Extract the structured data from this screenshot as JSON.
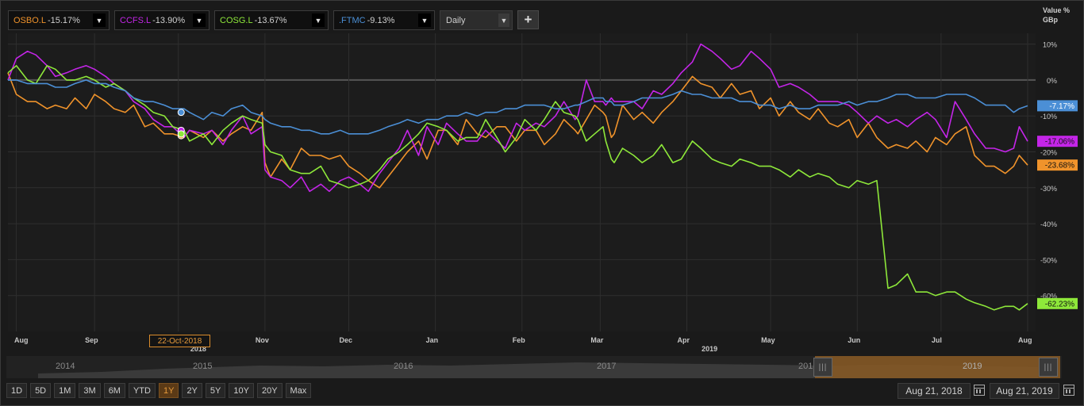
{
  "toolbar": {
    "tickers": [
      {
        "symbol": "OSBO.L",
        "change": "-15.17%",
        "color": "#f0932b"
      },
      {
        "symbol": "CCFS.L",
        "change": "-13.90%",
        "color": "#c425e8"
      },
      {
        "symbol": "COSG.L",
        "change": "-13.67%",
        "color": "#8ee83a"
      },
      {
        "symbol": ".FTMC",
        "change": "-9.13%",
        "color": "#4b8fd6"
      }
    ],
    "dropdown_glyph": "▼",
    "period_label": "Daily",
    "add_label": "+"
  },
  "axis": {
    "value_label": "Value %",
    "unit_label": "GBp"
  },
  "crosshair": {
    "date_label": "22-Oct-2018"
  },
  "navigator": {
    "years": [
      "2014",
      "2015",
      "2016",
      "2017",
      "2018",
      "2019"
    ]
  },
  "ranges": [
    "1D",
    "5D",
    "1M",
    "3M",
    "6M",
    "YTD",
    "1Y",
    "2Y",
    "5Y",
    "10Y",
    "20Y",
    "Max"
  ],
  "active_range": "1Y",
  "dates": {
    "start": "Aug 21, 2018",
    "end": "Aug 21, 2019"
  },
  "chart_data": {
    "type": "line",
    "ylim": [
      -70,
      13
    ],
    "yticks": [
      10,
      0,
      -10,
      -20,
      -30,
      -40,
      -50,
      -60
    ],
    "ytick_labels": [
      "10%",
      "0%",
      "-10%",
      "-20%",
      "-30%",
      "-40%",
      "-50%",
      "-60%"
    ],
    "xlim": [
      0,
      365
    ],
    "month_ticks": [
      {
        "label": "Aug",
        "day": 3
      },
      {
        "label": "Sep",
        "day": 31
      },
      {
        "label": "Oct",
        "day": 61
      },
      {
        "label": "Nov",
        "day": 92
      },
      {
        "label": "Dec",
        "day": 122
      },
      {
        "label": "Jan",
        "day": 153
      },
      {
        "label": "Feb",
        "day": 184
      },
      {
        "label": "Mar",
        "day": 212
      },
      {
        "label": "Apr",
        "day": 243
      },
      {
        "label": "May",
        "day": 273
      },
      {
        "label": "Jun",
        "day": 304
      },
      {
        "label": "Jul",
        "day": 334
      },
      {
        "label": "Aug",
        "day": 365
      }
    ],
    "hidden_month_labels": [
      "Oct"
    ],
    "year_labels": [
      {
        "label": "2018",
        "day": 67
      },
      {
        "label": "2019",
        "day": 250
      }
    ],
    "series": [
      {
        "name": "OSBO.L",
        "color": "#f0932b",
        "end_label": "-23.68%",
        "x": [
          0,
          3,
          7,
          10,
          14,
          17,
          21,
          24,
          28,
          31,
          35,
          38,
          42,
          45,
          49,
          52,
          56,
          59,
          63,
          65,
          70,
          73,
          77,
          80,
          84,
          87,
          91,
          92,
          94,
          98,
          101,
          105,
          108,
          112,
          115,
          119,
          122,
          126,
          129,
          133,
          136,
          140,
          143,
          147,
          150,
          154,
          157,
          161,
          164,
          168,
          171,
          175,
          178,
          182,
          185,
          189,
          192,
          196,
          199,
          203,
          204,
          207,
          210,
          213,
          214,
          216,
          217,
          220,
          224,
          227,
          231,
          234,
          238,
          241,
          245,
          248,
          252,
          255,
          259,
          262,
          266,
          269,
          273,
          276,
          280,
          283,
          287,
          290,
          294,
          297,
          301,
          304,
          308,
          311,
          315,
          318,
          322,
          325,
          329,
          332,
          336,
          339,
          343,
          346,
          350,
          353,
          357,
          360,
          362,
          365
        ],
        "values": [
          2,
          -4,
          -6,
          -6,
          -8,
          -7,
          -8,
          -5,
          -8,
          -4,
          -6,
          -8,
          -9,
          -7,
          -13,
          -12,
          -15,
          -15,
          -16,
          -14,
          -16,
          -14,
          -17,
          -15,
          -13,
          -14,
          -9,
          -23,
          -27,
          -22,
          -25,
          -19,
          -21,
          -21,
          -22,
          -21,
          -24,
          -26,
          -28,
          -30,
          -27,
          -23,
          -20,
          -17,
          -22,
          -14,
          -14,
          -18,
          -11,
          -15,
          -16,
          -13,
          -13,
          -17,
          -14,
          -14,
          -18,
          -15,
          -11,
          -14,
          -15,
          -11,
          -7,
          -9,
          -10,
          -16,
          -15,
          -7,
          -11,
          -9,
          -12,
          -9,
          -6,
          -3,
          1,
          -1,
          -2,
          -5,
          -1,
          -4,
          -3,
          -8,
          -5,
          -10,
          -6,
          -9,
          -11,
          -8,
          -12,
          -13,
          -11,
          -16,
          -12,
          -16,
          -19,
          -18,
          -19,
          -17,
          -20,
          -16,
          -18,
          -15,
          -13,
          -21,
          -24,
          -24,
          -26,
          -24,
          -21,
          -23.68
        ]
      },
      {
        "name": "CCFS.L",
        "color": "#c425e8",
        "end_label": "-17.06%",
        "x": [
          0,
          3,
          7,
          10,
          14,
          17,
          21,
          24,
          28,
          31,
          35,
          38,
          42,
          45,
          49,
          52,
          56,
          59,
          63,
          65,
          70,
          73,
          77,
          80,
          84,
          87,
          91,
          92,
          94,
          98,
          101,
          105,
          108,
          112,
          115,
          119,
          122,
          126,
          129,
          133,
          136,
          140,
          143,
          147,
          150,
          154,
          157,
          161,
          164,
          168,
          171,
          175,
          178,
          182,
          185,
          189,
          192,
          196,
          199,
          203,
          204,
          207,
          210,
          213,
          214,
          216,
          217,
          220,
          224,
          227,
          231,
          234,
          238,
          241,
          245,
          248,
          252,
          255,
          259,
          262,
          266,
          269,
          273,
          276,
          280,
          283,
          287,
          290,
          294,
          297,
          301,
          304,
          308,
          311,
          315,
          318,
          322,
          325,
          329,
          332,
          336,
          339,
          343,
          346,
          350,
          353,
          357,
          360,
          362,
          365
        ],
        "values": [
          0,
          6,
          8,
          7,
          4,
          1,
          2,
          3,
          4,
          3,
          1,
          -1,
          -3,
          -6,
          -8,
          -11,
          -13,
          -13,
          -16,
          -14,
          -15,
          -14,
          -18,
          -14,
          -10,
          -15,
          -13,
          -25,
          -27,
          -28,
          -30,
          -27,
          -31,
          -29,
          -31,
          -28,
          -27,
          -29,
          -31,
          -26,
          -23,
          -19,
          -14,
          -21,
          -13,
          -18,
          -12,
          -15,
          -17,
          -17,
          -14,
          -17,
          -19,
          -12,
          -14,
          -12,
          -13,
          -10,
          -6,
          -11,
          -10,
          0,
          -6,
          -6,
          -7,
          -5,
          -6,
          -6,
          -6,
          -8,
          -3,
          -4,
          -1,
          2,
          5,
          10,
          8,
          6,
          3,
          4,
          8,
          6,
          3,
          -2,
          -1,
          -2,
          -4,
          -6,
          -6,
          -6,
          -7,
          -9,
          -12,
          -10,
          -12,
          -11,
          -13,
          -11,
          -9,
          -11,
          -16,
          -6,
          -11,
          -15,
          -19,
          -19,
          -20,
          -19,
          -13,
          -17.06
        ]
      },
      {
        "name": "COSG.L",
        "color": "#8ee83a",
        "end_label": "-62.23%",
        "x": [
          0,
          3,
          7,
          10,
          14,
          17,
          21,
          24,
          28,
          31,
          35,
          38,
          42,
          45,
          49,
          52,
          56,
          59,
          63,
          65,
          70,
          73,
          77,
          80,
          84,
          87,
          91,
          92,
          94,
          98,
          101,
          105,
          108,
          112,
          115,
          119,
          122,
          126,
          129,
          133,
          136,
          140,
          143,
          147,
          150,
          154,
          157,
          161,
          164,
          168,
          171,
          175,
          178,
          182,
          185,
          189,
          192,
          196,
          199,
          203,
          204,
          207,
          210,
          213,
          214,
          216,
          217,
          220,
          224,
          227,
          231,
          234,
          238,
          241,
          245,
          248,
          252,
          255,
          259,
          262,
          266,
          269,
          273,
          276,
          280,
          283,
          287,
          290,
          294,
          297,
          301,
          304,
          308,
          311,
          315,
          318,
          322,
          325,
          329,
          332,
          336,
          339,
          343,
          346,
          350,
          353,
          357,
          360,
          362,
          365
        ],
        "values": [
          2,
          4,
          0,
          -1,
          4,
          3,
          0,
          0,
          1,
          0,
          -2,
          -1,
          -3,
          -5,
          -7,
          -9,
          -10,
          -13,
          -14,
          -17,
          -15,
          -18,
          -14,
          -12,
          -10,
          -11,
          -12,
          -18,
          -20,
          -21,
          -25,
          -26,
          -26,
          -24,
          -28,
          -29,
          -30,
          -29,
          -28,
          -25,
          -22,
          -20,
          -18,
          -15,
          -12,
          -13,
          -14,
          -17,
          -16,
          -16,
          -11,
          -16,
          -20,
          -16,
          -11,
          -14,
          -11,
          -6,
          -9,
          -10,
          -11,
          -17,
          -15,
          -13,
          -17,
          -22,
          -23,
          -19,
          -21,
          -23,
          -21,
          -18,
          -23,
          -22,
          -17,
          -19,
          -22,
          -23,
          -24,
          -22,
          -23,
          -24,
          -24,
          -25,
          -27,
          -25,
          -27,
          -26,
          -27,
          -29,
          -30,
          -28,
          -29,
          -28,
          -58,
          -57,
          -54,
          -59,
          -59,
          -60,
          -59,
          -59,
          -61,
          -62,
          -63,
          -64,
          -63,
          -63,
          -64,
          -62.23
        ]
      },
      {
        "name": ".FTMC",
        "color": "#4b8fd6",
        "end_label": "-7.17%",
        "x": [
          0,
          3,
          7,
          10,
          14,
          17,
          21,
          24,
          28,
          31,
          35,
          38,
          42,
          45,
          49,
          52,
          56,
          59,
          63,
          65,
          70,
          73,
          77,
          80,
          84,
          87,
          91,
          92,
          94,
          98,
          101,
          105,
          108,
          112,
          115,
          119,
          122,
          126,
          129,
          133,
          136,
          140,
          143,
          147,
          150,
          154,
          157,
          161,
          164,
          168,
          171,
          175,
          178,
          182,
          185,
          189,
          192,
          196,
          199,
          203,
          204,
          207,
          210,
          213,
          214,
          216,
          217,
          220,
          224,
          227,
          231,
          234,
          238,
          241,
          245,
          248,
          252,
          255,
          259,
          262,
          266,
          269,
          273,
          276,
          280,
          283,
          287,
          290,
          294,
          297,
          301,
          304,
          308,
          311,
          315,
          318,
          322,
          325,
          329,
          332,
          336,
          339,
          343,
          346,
          350,
          353,
          357,
          360,
          362,
          365
        ],
        "values": [
          0,
          0,
          -1,
          -1,
          -1,
          -2,
          -2,
          -1,
          0,
          -1,
          -1,
          -2,
          -3,
          -5,
          -6,
          -6,
          -7,
          -8,
          -8,
          -9,
          -11,
          -9,
          -10,
          -8,
          -7,
          -9,
          -10,
          -11,
          -12,
          -13,
          -13,
          -14,
          -14,
          -15,
          -15,
          -14,
          -15,
          -15,
          -15,
          -14,
          -13,
          -12,
          -11,
          -12,
          -11,
          -11,
          -10,
          -10,
          -9,
          -10,
          -9,
          -9,
          -8,
          -8,
          -7,
          -7,
          -7,
          -8,
          -8,
          -7,
          -7,
          -6,
          -5,
          -5,
          -6,
          -6,
          -7,
          -7,
          -6,
          -5,
          -5,
          -5,
          -4,
          -3,
          -4,
          -4,
          -5,
          -5,
          -5,
          -6,
          -6,
          -7,
          -7,
          -8,
          -7,
          -8,
          -8,
          -7,
          -7,
          -7,
          -6,
          -7,
          -6,
          -6,
          -5,
          -4,
          -4,
          -5,
          -5,
          -5,
          -4,
          -4,
          -4,
          -5,
          -7,
          -7,
          -7,
          -9,
          -8,
          -7.17
        ]
      }
    ],
    "crosshair_day": 62,
    "crosshair_values": [
      -15.5,
      -14,
      -15,
      -9
    ]
  }
}
